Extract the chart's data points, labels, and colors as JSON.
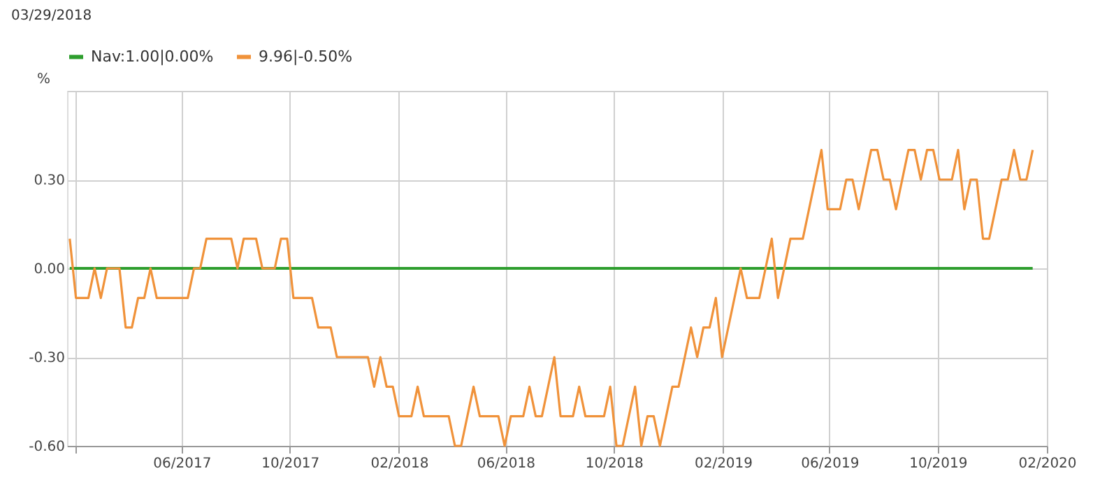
{
  "chart_data": {
    "type": "line",
    "ylabel": "%",
    "annotations": [
      "03/29/2018"
    ],
    "xlim": [
      "2017-01-23",
      "2020-02-01"
    ],
    "xticks": [
      {
        "value": "2017-02-01",
        "label": null
      },
      {
        "value": "2017-06-01",
        "label": "06/2017"
      },
      {
        "value": "2017-10-01",
        "label": "10/2017"
      },
      {
        "value": "2018-02-01",
        "label": "02/2018"
      },
      {
        "value": "2018-06-01",
        "label": "06/2018"
      },
      {
        "value": "2018-10-01",
        "label": "10/2018"
      },
      {
        "value": "2019-02-01",
        "label": "02/2019"
      },
      {
        "value": "2019-06-01",
        "label": "06/2019"
      },
      {
        "value": "2019-10-01",
        "label": "10/2019"
      },
      {
        "value": "2020-02-01",
        "label": "02/2020"
      }
    ],
    "ylim": [
      -0.6,
      0.6
    ],
    "yticks": [
      {
        "value": -0.6,
        "label": "-0.60"
      },
      {
        "value": -0.3,
        "label": "-0.30"
      },
      {
        "value": 0,
        "label": "0.00"
      },
      {
        "value": 0.3,
        "label": "0.30"
      },
      {
        "value": 0.6,
        "label": null
      }
    ],
    "grid": true,
    "legend": "top left",
    "marker": "none",
    "line_style": "solid",
    "series": [
      {
        "name": "Nav:1.00|0.00%",
        "color": "#2e9e2e",
        "x": [
          "2017-01-26",
          "2020-01-16"
        ],
        "values": [
          0.0,
          0.0
        ]
      },
      {
        "name": "9.96|-0.50%",
        "color": "#f0923a",
        "x": [
          "2017-01-26",
          "2017-02-02",
          "2017-02-16",
          "2017-02-23",
          "2017-03-02",
          "2017-03-09",
          "2017-03-23",
          "2017-03-30",
          "2017-04-06",
          "2017-04-13",
          "2017-04-20",
          "2017-04-27",
          "2017-05-04",
          "2017-06-08",
          "2017-06-15",
          "2017-06-22",
          "2017-06-29",
          "2017-07-27",
          "2017-08-03",
          "2017-08-10",
          "2017-08-24",
          "2017-08-31",
          "2017-09-14",
          "2017-09-21",
          "2017-09-28",
          "2017-10-05",
          "2017-10-26",
          "2017-11-02",
          "2017-11-16",
          "2017-11-23",
          "2017-12-28",
          "2018-01-04",
          "2018-01-11",
          "2018-01-18",
          "2018-01-25",
          "2018-02-01",
          "2018-02-15",
          "2018-02-22",
          "2018-03-01",
          "2018-03-29",
          "2018-04-05",
          "2018-04-12",
          "2018-04-26",
          "2018-05-03",
          "2018-05-24",
          "2018-05-31",
          "2018-06-07",
          "2018-06-21",
          "2018-06-28",
          "2018-07-05",
          "2018-07-12",
          "2018-07-26",
          "2018-08-02",
          "2018-08-16",
          "2018-08-23",
          "2018-08-30",
          "2018-09-20",
          "2018-09-27",
          "2018-10-04",
          "2018-10-11",
          "2018-10-25",
          "2018-11-01",
          "2018-11-08",
          "2018-11-15",
          "2018-11-22",
          "2018-12-06",
          "2018-12-13",
          "2018-12-27",
          "2019-01-03",
          "2019-01-10",
          "2019-01-17",
          "2019-01-24",
          "2019-01-31",
          "2019-02-21",
          "2019-02-28",
          "2019-03-14",
          "2019-03-21",
          "2019-03-28",
          "2019-04-04",
          "2019-04-18",
          "2019-05-02",
          "2019-05-23",
          "2019-05-30",
          "2019-06-13",
          "2019-06-20",
          "2019-06-27",
          "2019-07-04",
          "2019-07-18",
          "2019-07-25",
          "2019-08-01",
          "2019-08-08",
          "2019-08-15",
          "2019-08-29",
          "2019-09-05",
          "2019-09-12",
          "2019-09-19",
          "2019-09-26",
          "2019-10-03",
          "2019-10-17",
          "2019-10-24",
          "2019-10-31",
          "2019-11-07",
          "2019-11-14",
          "2019-11-21",
          "2019-11-28",
          "2019-12-12",
          "2019-12-19",
          "2019-12-26",
          "2020-01-02",
          "2020-01-09",
          "2020-01-16"
        ],
        "values": [
          0.1,
          -0.1,
          -0.1,
          0.0,
          -0.1,
          0.0,
          0.0,
          -0.2,
          -0.2,
          -0.1,
          -0.1,
          0.0,
          -0.1,
          -0.1,
          0.0,
          0.0,
          0.1,
          0.1,
          0.0,
          0.1,
          0.1,
          0.0,
          0.0,
          0.1,
          0.1,
          -0.1,
          -0.1,
          -0.2,
          -0.2,
          -0.3,
          -0.3,
          -0.4,
          -0.3,
          -0.4,
          -0.4,
          -0.5,
          -0.5,
          -0.4,
          -0.5,
          -0.5,
          -0.6,
          -0.6,
          -0.4,
          -0.5,
          -0.5,
          -0.6,
          -0.5,
          -0.5,
          -0.4,
          -0.5,
          -0.5,
          -0.3,
          -0.5,
          -0.5,
          -0.4,
          -0.5,
          -0.5,
          -0.4,
          -0.6,
          -0.6,
          -0.4,
          -0.6,
          -0.5,
          -0.5,
          -0.6,
          -0.4,
          -0.4,
          -0.2,
          -0.3,
          -0.2,
          -0.2,
          -0.1,
          -0.3,
          0.0,
          -0.1,
          -0.1,
          0.0,
          0.1,
          -0.1,
          0.1,
          0.1,
          0.4,
          0.2,
          0.2,
          0.3,
          0.3,
          0.2,
          0.4,
          0.4,
          0.3,
          0.3,
          0.2,
          0.4,
          0.4,
          0.3,
          0.4,
          0.4,
          0.3,
          0.3,
          0.4,
          0.2,
          0.3,
          0.3,
          0.1,
          0.1,
          0.3,
          0.3,
          0.4,
          0.3,
          0.3,
          0.4
        ]
      }
    ]
  }
}
